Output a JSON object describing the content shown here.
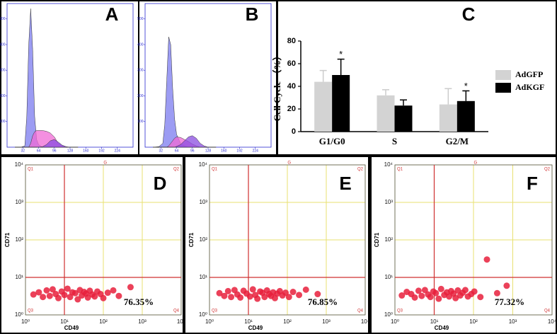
{
  "chart_data": [
    {
      "type": "area",
      "panel_label": "A",
      "x": [
        16,
        28,
        36,
        40,
        44,
        48,
        52,
        56,
        60,
        64,
        72,
        80,
        88,
        96,
        104,
        112,
        120,
        128,
        144
      ],
      "xlim": [
        0,
        256
      ],
      "xticks": [
        32,
        64,
        96,
        128,
        160,
        192,
        224
      ],
      "ylim": [
        0,
        560
      ],
      "yticks": [
        100,
        200,
        300,
        400,
        500
      ],
      "series": [
        {
          "color": "#7b7bef",
          "values": [
            0,
            0,
            5,
            120,
            400,
            540,
            380,
            120,
            30,
            10,
            0,
            0,
            0,
            0,
            0,
            0,
            0,
            0,
            0
          ]
        },
        {
          "color": "#f06ad6",
          "values": [
            0,
            0,
            0,
            0,
            0,
            15,
            45,
            60,
            65,
            65,
            65,
            62,
            55,
            40,
            15,
            5,
            0,
            0,
            0
          ]
        },
        {
          "color": "#8a4ce0",
          "values": [
            0,
            0,
            0,
            0,
            0,
            0,
            0,
            0,
            0,
            0,
            2,
            10,
            25,
            30,
            20,
            8,
            2,
            0,
            0
          ]
        }
      ]
    },
    {
      "type": "area",
      "panel_label": "B",
      "x": [
        16,
        28,
        36,
        40,
        44,
        48,
        52,
        56,
        60,
        64,
        72,
        80,
        88,
        96,
        104,
        112,
        120,
        128,
        144
      ],
      "xlim": [
        0,
        256
      ],
      "xticks": [
        32,
        64,
        96,
        128,
        160,
        192,
        224
      ],
      "ylim": [
        0,
        560
      ],
      "yticks": [
        100,
        200,
        300,
        400,
        500
      ],
      "series": [
        {
          "color": "#7b7bef",
          "values": [
            0,
            2,
            15,
            90,
            260,
            430,
            400,
            230,
            110,
            50,
            15,
            5,
            0,
            0,
            0,
            0,
            0,
            0,
            0
          ]
        },
        {
          "color": "#f06ad6",
          "values": [
            0,
            0,
            0,
            0,
            0,
            5,
            15,
            25,
            35,
            40,
            38,
            30,
            22,
            12,
            5,
            0,
            0,
            0,
            0
          ]
        },
        {
          "color": "#8a4ce0",
          "values": [
            0,
            0,
            0,
            0,
            0,
            0,
            0,
            0,
            0,
            3,
            10,
            25,
            40,
            45,
            35,
            15,
            5,
            0,
            0
          ]
        }
      ]
    },
    {
      "type": "bar",
      "panel_label": "C",
      "y_label": "Cell Cycle （%）",
      "categories": [
        "G1/G0",
        "S",
        "G2/M"
      ],
      "ylim": [
        0,
        80
      ],
      "yticks": [
        0,
        20,
        40,
        60,
        80
      ],
      "series": [
        {
          "name": "AdGFP",
          "color": "#d3d3d3",
          "values": [
            44,
            32,
            24
          ],
          "errors": [
            10,
            5,
            14
          ]
        },
        {
          "name": "AdKGF",
          "color": "#000000",
          "values": [
            50,
            23,
            27
          ],
          "errors": [
            14,
            5,
            9
          ]
        }
      ],
      "significance": [
        "*",
        null,
        "*"
      ]
    },
    {
      "type": "scatter",
      "panel_label": "D",
      "x_label": "CD49",
      "y_label": "CD71",
      "log_scale": true,
      "xlim": [
        1,
        10000
      ],
      "ylim": [
        1,
        10000
      ],
      "xticks": [
        {
          "value": 1,
          "label": "10⁰"
        },
        {
          "value": 10,
          "label": "10¹"
        },
        {
          "value": 100,
          "label": "10²"
        },
        {
          "value": 1000,
          "label": "10³"
        },
        {
          "value": 10000,
          "label": "10⁴"
        }
      ],
      "yticks": [
        {
          "value": 1,
          "label": "10⁰"
        },
        {
          "value": 10,
          "label": "10¹"
        },
        {
          "value": 100,
          "label": "10²"
        },
        {
          "value": 1000,
          "label": "10³"
        },
        {
          "value": 10000,
          "label": "10⁴"
        }
      ],
      "gates": {
        "x": 10,
        "y": 10
      },
      "gate_label": "G",
      "quadrants": [
        "Q1",
        "Q2",
        "Q3",
        "Q4"
      ],
      "annotation": "76.35%",
      "color": "#e8203c",
      "x": [
        1.6,
        2.2,
        2.8,
        3.5,
        4.2,
        5,
        6,
        7,
        8.5,
        10,
        12,
        14,
        16,
        19,
        22,
        25,
        28,
        32,
        36,
        40,
        45,
        52,
        60,
        70,
        85,
        100,
        130,
        180,
        250,
        500
      ],
      "values": [
        3.5,
        4,
        3,
        4.5,
        3.2,
        4.8,
        3.6,
        2.8,
        4.2,
        3.4,
        5,
        3,
        4,
        3.8,
        2.6,
        4.6,
        3.3,
        4.1,
        3.7,
        2.9,
        4.4,
        3.5,
        3.1,
        4.2,
        3.6,
        2.8,
        3.9,
        4.5,
        3.2,
        5.5
      ]
    },
    {
      "type": "scatter",
      "panel_label": "E",
      "x_label": "CD49",
      "y_label": "CD71",
      "log_scale": true,
      "xlim": [
        1,
        10000
      ],
      "ylim": [
        1,
        10000
      ],
      "xticks": [
        {
          "value": 1,
          "label": "10⁰"
        },
        {
          "value": 10,
          "label": "10¹"
        },
        {
          "value": 100,
          "label": "10²"
        },
        {
          "value": 1000,
          "label": "10³"
        },
        {
          "value": 10000,
          "label": "10⁴"
        }
      ],
      "yticks": [
        {
          "value": 1,
          "label": "10⁰"
        },
        {
          "value": 10,
          "label": "10¹"
        },
        {
          "value": 100,
          "label": "10²"
        },
        {
          "value": 1000,
          "label": "10³"
        },
        {
          "value": 10000,
          "label": "10⁴"
        }
      ],
      "gates": {
        "x": 10,
        "y": 10
      },
      "gate_label": "G",
      "quadrants": [
        "Q1",
        "Q2",
        "Q3",
        "Q4"
      ],
      "annotation": "76.85%",
      "color": "#e8203c",
      "x": [
        1.8,
        2.4,
        3,
        3.6,
        4.4,
        5.2,
        6.2,
        7.5,
        9,
        11,
        13,
        15,
        17,
        20,
        23,
        26,
        30,
        34,
        38,
        43,
        48,
        55,
        64,
        75,
        90,
        110,
        140,
        200,
        300,
        600
      ],
      "values": [
        3.8,
        3.2,
        4.3,
        3,
        4.6,
        3.5,
        2.9,
        4.4,
        3.7,
        3.1,
        4.8,
        3.4,
        2.7,
        4.2,
        3.9,
        3,
        4.5,
        3.6,
        3.2,
        4,
        2.8,
        3.7,
        4.3,
        3.3,
        3.9,
        3,
        4.1,
        3.4,
        4.7,
        3.6
      ]
    },
    {
      "type": "scatter",
      "panel_label": "F",
      "x_label": "CD49",
      "y_label": "CD71",
      "log_scale": true,
      "xlim": [
        1,
        10000
      ],
      "ylim": [
        1,
        10000
      ],
      "xticks": [
        {
          "value": 1,
          "label": "10⁰"
        },
        {
          "value": 10,
          "label": "10¹"
        },
        {
          "value": 100,
          "label": "10²"
        },
        {
          "value": 1000,
          "label": "10³"
        },
        {
          "value": 10000,
          "label": "10⁴"
        }
      ],
      "yticks": [
        {
          "value": 1,
          "label": "10⁰"
        },
        {
          "value": 10,
          "label": "10¹"
        },
        {
          "value": 100,
          "label": "10²"
        },
        {
          "value": 1000,
          "label": "10³"
        },
        {
          "value": 10000,
          "label": "10⁴"
        }
      ],
      "gates": {
        "x": 10,
        "y": 10
      },
      "gate_label": "G",
      "quadrants": [
        "Q1",
        "Q2",
        "Q3",
        "Q4"
      ],
      "annotation": "77.32%",
      "color": "#e8203c",
      "x": [
        1.5,
        2,
        2.6,
        3.2,
        4,
        4.8,
        5.8,
        7,
        8,
        9.5,
        11,
        13,
        15,
        18,
        21,
        24,
        27,
        31,
        35,
        40,
        46,
        53,
        62,
        72,
        88,
        105,
        150,
        220,
        400,
        700
      ],
      "values": [
        3.3,
        4.1,
        3.6,
        2.9,
        4.4,
        3.2,
        4.6,
        3.5,
        3,
        4.2,
        3.8,
        2.7,
        4.9,
        3.4,
        4,
        3.1,
        4.3,
        3.7,
        2.8,
        4.5,
        3.3,
        3.9,
        4.6,
        3.1,
        3.6,
        4.2,
        3,
        30,
        3.8,
        6
      ]
    }
  ]
}
